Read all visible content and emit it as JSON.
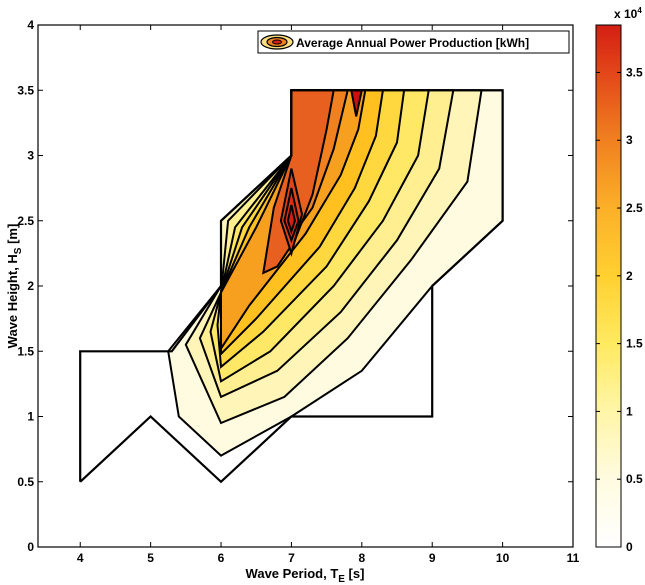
{
  "chart_data": {
    "type": "contour",
    "x_label_main": "Wave Period, T",
    "x_label_sub": "E",
    "x_label_unit": " [s]",
    "y_label_main": "Wave Height, H",
    "y_label_sub": "S",
    "y_label_unit": " [m]",
    "xlim": [
      3.4,
      11
    ],
    "ylim": [
      0,
      4
    ],
    "x_ticks": [
      "4",
      "5",
      "6",
      "7",
      "8",
      "9",
      "10",
      "11"
    ],
    "y_ticks": [
      "0",
      "0.5",
      "1",
      "1.5",
      "2",
      "2.5",
      "3",
      "3.5",
      "4"
    ],
    "legend_entry": "Average Annual Power Production [kWh]",
    "legend_position": "top-right",
    "colorbar": {
      "range": [
        0,
        38500
      ],
      "tick_labels": [
        "0",
        "0.5",
        "1",
        "1.5",
        "2",
        "2.5",
        "3",
        "3.5"
      ],
      "exponent_base": "x 10",
      "exponent_power": "4"
    },
    "domain_outline": [
      [
        4,
        0.5
      ],
      [
        4,
        1.5
      ],
      [
        5,
        1.5
      ],
      [
        5.3,
        1.5
      ],
      [
        6,
        2
      ],
      [
        6,
        2.5
      ],
      [
        7,
        3
      ],
      [
        7,
        3.5
      ],
      [
        10,
        3.5
      ],
      [
        10,
        2.5
      ],
      [
        9,
        2
      ],
      [
        9,
        1
      ],
      [
        7,
        1
      ],
      [
        6,
        0.5
      ],
      [
        5,
        1
      ],
      [
        4,
        0.5
      ]
    ],
    "contour_levels": [
      {
        "value": 3000,
        "color": "#fffbe0",
        "points": [
          [
            5.25,
            1.5
          ],
          [
            6,
            2
          ],
          [
            6,
            2.5
          ],
          [
            7,
            3
          ],
          [
            7,
            3.5
          ],
          [
            10,
            3.5
          ],
          [
            10,
            2.5
          ],
          [
            9,
            2
          ],
          [
            8,
            1.35
          ],
          [
            7,
            1
          ],
          [
            6,
            0.7
          ],
          [
            5.4,
            1.0
          ]
        ]
      },
      {
        "value": 6000,
        "color": "#fff5b8",
        "points": [
          [
            5.5,
            1.55
          ],
          [
            6,
            2
          ],
          [
            6,
            2.5
          ],
          [
            7,
            3
          ],
          [
            7,
            3.5
          ],
          [
            9.7,
            3.5
          ],
          [
            9.5,
            2.8
          ],
          [
            8.7,
            2.2
          ],
          [
            7.8,
            1.6
          ],
          [
            6.9,
            1.15
          ],
          [
            6,
            0.95
          ]
        ]
      },
      {
        "value": 9000,
        "color": "#ffef90",
        "points": [
          [
            5.7,
            1.6
          ],
          [
            6,
            1.95
          ],
          [
            6.1,
            2.5
          ],
          [
            7,
            3
          ],
          [
            7,
            3.5
          ],
          [
            9.3,
            3.5
          ],
          [
            9.1,
            2.9
          ],
          [
            8.5,
            2.35
          ],
          [
            7.7,
            1.8
          ],
          [
            6.8,
            1.35
          ],
          [
            6,
            1.15
          ]
        ]
      },
      {
        "value": 12000,
        "color": "#ffe866",
        "points": [
          [
            5.85,
            1.65
          ],
          [
            6,
            1.95
          ],
          [
            6.2,
            2.45
          ],
          [
            7,
            3
          ],
          [
            7,
            3.5
          ],
          [
            8.95,
            3.5
          ],
          [
            8.8,
            3.0
          ],
          [
            8.3,
            2.5
          ],
          [
            7.6,
            2.0
          ],
          [
            6.7,
            1.5
          ],
          [
            6,
            1.27
          ]
        ]
      },
      {
        "value": 15000,
        "color": "#ffd840",
        "points": [
          [
            5.95,
            1.7
          ],
          [
            6,
            1.95
          ],
          [
            6.3,
            2.45
          ],
          [
            7,
            3
          ],
          [
            7,
            3.5
          ],
          [
            8.6,
            3.5
          ],
          [
            8.5,
            3.1
          ],
          [
            8.1,
            2.65
          ],
          [
            7.5,
            2.15
          ],
          [
            6.6,
            1.65
          ],
          [
            6,
            1.38
          ]
        ]
      },
      {
        "value": 18000,
        "color": "#ffc020",
        "points": [
          [
            6,
            1.95
          ],
          [
            6.4,
            2.45
          ],
          [
            7,
            3
          ],
          [
            7,
            3.5
          ],
          [
            8.3,
            3.5
          ],
          [
            8.2,
            3.15
          ],
          [
            7.9,
            2.75
          ],
          [
            7.4,
            2.3
          ],
          [
            6.5,
            1.75
          ],
          [
            6,
            1.48
          ]
        ]
      },
      {
        "value": 21000,
        "color": "#f7a020",
        "points": [
          [
            6,
            1.95
          ],
          [
            6.5,
            2.45
          ],
          [
            7,
            3
          ],
          [
            7,
            3.5
          ],
          [
            8.05,
            3.5
          ],
          [
            7.95,
            3.2
          ],
          [
            7.7,
            2.85
          ],
          [
            7.2,
            2.4
          ],
          [
            6.4,
            1.85
          ],
          [
            6,
            1.52
          ]
        ]
      },
      {
        "value": 24000,
        "color": "#f08020",
        "points": [
          [
            6.7,
            2.2
          ],
          [
            7,
            3
          ],
          [
            7,
            3.5
          ],
          [
            7.8,
            3.5
          ],
          [
            7.6,
            3.05
          ],
          [
            7.3,
            2.6
          ],
          [
            6.9,
            2.3
          ]
        ]
      },
      {
        "value": 27000,
        "color": "#e86020",
        "points": [
          [
            6.6,
            2.1
          ],
          [
            6.75,
            2.6
          ],
          [
            7,
            3
          ],
          [
            7,
            3.5
          ],
          [
            7.6,
            3.5
          ],
          [
            7.5,
            3.2
          ],
          [
            7.3,
            2.7
          ],
          [
            7.05,
            2.35
          ],
          [
            6.8,
            2.15
          ]
        ]
      },
      {
        "value": 29000,
        "color": "#e24418",
        "points": [
          [
            6.85,
            2.5
          ],
          [
            7,
            2.9
          ],
          [
            7.15,
            2.55
          ],
          [
            7,
            2.25
          ]
        ]
      },
      {
        "value": 33000,
        "color": "#dc2c14",
        "points": [
          [
            6.9,
            2.5
          ],
          [
            7,
            2.75
          ],
          [
            7.1,
            2.5
          ],
          [
            7,
            2.35
          ]
        ]
      },
      {
        "value": 36000,
        "color": "#d41e14",
        "points": [
          [
            6.95,
            2.5
          ],
          [
            7,
            2.62
          ],
          [
            7.05,
            2.5
          ],
          [
            7,
            2.42
          ]
        ]
      },
      {
        "value": 37500,
        "color": "#cc1010",
        "points": [
          [
            7.85,
            3.5
          ],
          [
            7.92,
            3.3
          ],
          [
            8.0,
            3.5
          ]
        ]
      }
    ]
  }
}
